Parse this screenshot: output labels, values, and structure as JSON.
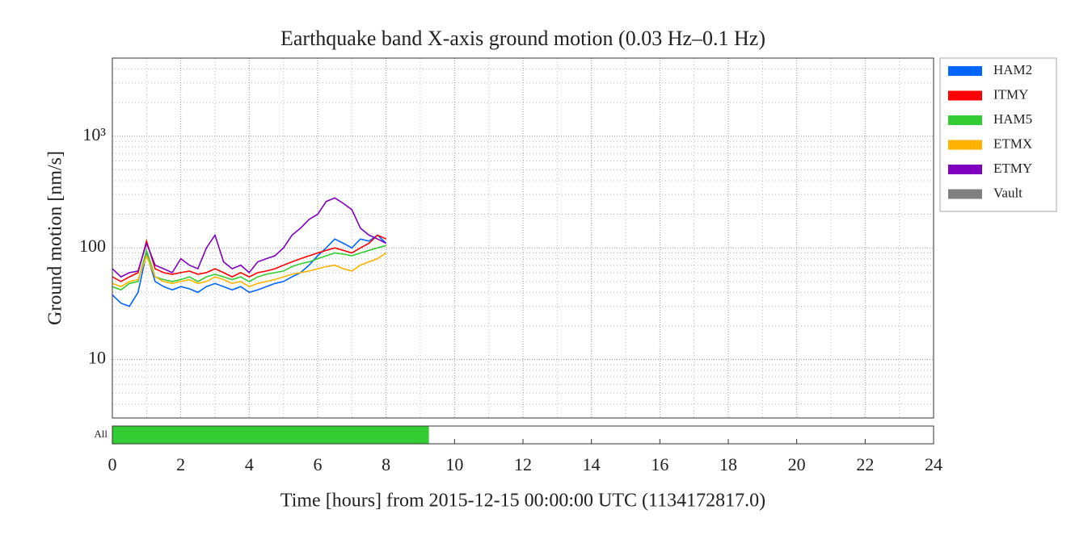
{
  "chart_data": {
    "type": "line",
    "title": "Earthquake band X-axis ground motion (0.03 Hz–0.1 Hz)",
    "y_label": "Ground motion [nm/s]",
    "x_label": "Time [hours] from 2015-12-15 00:00:00 UTC (1134172817.0)",
    "log_y": true,
    "grid": true,
    "legend": "outside-right",
    "x": [
      0,
      0.25,
      0.5,
      0.75,
      1,
      1.25,
      1.5,
      1.75,
      2,
      2.25,
      2.5,
      2.75,
      3,
      3.25,
      3.5,
      3.75,
      4,
      4.25,
      4.5,
      4.75,
      5,
      5.25,
      5.5,
      5.75,
      6,
      6.25,
      6.5,
      6.75,
      7,
      7.25,
      7.5,
      7.75,
      8
    ],
    "series": [
      {
        "name": "HAM2",
        "color": "#0066ff",
        "values": [
          38,
          32,
          30,
          40,
          90,
          50,
          45,
          42,
          45,
          43,
          40,
          45,
          48,
          45,
          42,
          45,
          40,
          42,
          45,
          48,
          50,
          55,
          60,
          70,
          85,
          100,
          120,
          110,
          100,
          120,
          115,
          130,
          110
        ]
      },
      {
        "name": "ITMY",
        "color": "#ff0000",
        "values": [
          55,
          50,
          55,
          60,
          115,
          65,
          60,
          58,
          60,
          62,
          58,
          60,
          65,
          60,
          55,
          60,
          55,
          60,
          62,
          65,
          70,
          75,
          80,
          85,
          90,
          95,
          100,
          95,
          90,
          100,
          110,
          130,
          120
        ]
      },
      {
        "name": "HAM5",
        "color": "#33cc33",
        "values": [
          45,
          42,
          48,
          50,
          95,
          55,
          52,
          50,
          52,
          55,
          50,
          55,
          58,
          55,
          52,
          55,
          50,
          55,
          58,
          60,
          62,
          68,
          72,
          75,
          80,
          85,
          90,
          88,
          85,
          90,
          95,
          100,
          105
        ]
      },
      {
        "name": "ETMX",
        "color": "#ffb200",
        "values": [
          48,
          45,
          50,
          52,
          85,
          55,
          50,
          48,
          50,
          52,
          48,
          50,
          55,
          52,
          48,
          50,
          45,
          48,
          50,
          52,
          55,
          58,
          60,
          62,
          65,
          68,
          70,
          65,
          62,
          70,
          75,
          80,
          90
        ]
      },
      {
        "name": "ETMY",
        "color": "#8000c0",
        "values": [
          65,
          55,
          60,
          62,
          110,
          70,
          65,
          60,
          80,
          70,
          65,
          100,
          130,
          75,
          65,
          70,
          60,
          75,
          80,
          85,
          100,
          130,
          150,
          180,
          200,
          260,
          280,
          250,
          220,
          150,
          130,
          120,
          110
        ]
      },
      {
        "name": "Vault",
        "color": "#808080",
        "values": [
          null,
          null,
          null,
          null,
          null,
          null,
          null,
          null,
          null,
          null,
          null,
          null,
          null,
          null,
          null,
          null,
          null,
          null,
          null,
          null,
          null,
          null,
          null,
          null,
          null,
          null,
          null,
          null,
          null,
          null,
          null,
          null,
          null
        ]
      }
    ],
    "xlim": [
      0,
      24
    ],
    "xticks": [
      0,
      2,
      4,
      6,
      8,
      10,
      12,
      14,
      16,
      18,
      20,
      22,
      24
    ],
    "xminorticks": [
      1,
      3,
      5,
      7,
      9,
      11,
      13,
      15,
      17,
      19,
      21,
      23
    ],
    "ylim": [
      3,
      5000
    ],
    "yticks": [
      10,
      100,
      {
        "value": 1000,
        "label": "10³"
      }
    ],
    "yminorticks": [
      4,
      5,
      6,
      7,
      8,
      9,
      20,
      30,
      40,
      50,
      60,
      70,
      80,
      90,
      200,
      300,
      400,
      500,
      600,
      700,
      800,
      900,
      2000,
      3000,
      4000
    ],
    "segments": [
      {
        "label": "All",
        "start": 0,
        "end": 9.25,
        "color": "#33cc33"
      }
    ]
  }
}
